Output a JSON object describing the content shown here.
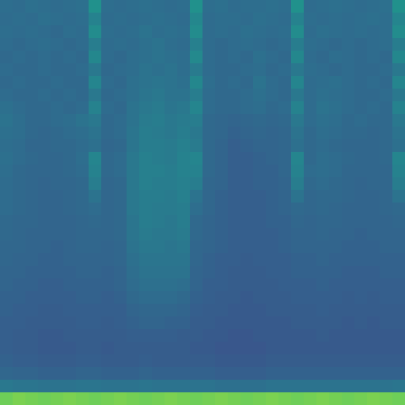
{
  "chart_data": {
    "type": "heatmap",
    "color": "Viridis",
    "zlim": [
      0,
      1
    ],
    "xlim": [
      -0.5,
      31.5
    ],
    "ylim": [
      31.5,
      -0.5
    ],
    "tick_labels": false,
    "z": [
      [
        0.36,
        0.35,
        0.37,
        0.36,
        0.35,
        0.36,
        0.37,
        0.5,
        0.36,
        0.35,
        0.36,
        0.37,
        0.36,
        0.35,
        0.36,
        0.5,
        0.36,
        0.37,
        0.35,
        0.36,
        0.36,
        0.37,
        0.36,
        0.5,
        0.35,
        0.36,
        0.37,
        0.36,
        0.35,
        0.36,
        0.37,
        0.5
      ],
      [
        0.35,
        0.36,
        0.35,
        0.37,
        0.36,
        0.35,
        0.36,
        0.44,
        0.35,
        0.36,
        0.35,
        0.36,
        0.37,
        0.36,
        0.35,
        0.46,
        0.35,
        0.36,
        0.36,
        0.35,
        0.37,
        0.36,
        0.35,
        0.44,
        0.36,
        0.35,
        0.36,
        0.35,
        0.36,
        0.37,
        0.36,
        0.45
      ],
      [
        0.36,
        0.35,
        0.36,
        0.35,
        0.34,
        0.36,
        0.35,
        0.48,
        0.36,
        0.35,
        0.36,
        0.38,
        0.36,
        0.37,
        0.36,
        0.48,
        0.35,
        0.36,
        0.35,
        0.37,
        0.36,
        0.35,
        0.36,
        0.48,
        0.35,
        0.37,
        0.36,
        0.35,
        0.36,
        0.35,
        0.36,
        0.48
      ],
      [
        0.35,
        0.34,
        0.35,
        0.36,
        0.35,
        0.34,
        0.35,
        0.42,
        0.35,
        0.36,
        0.35,
        0.37,
        0.38,
        0.36,
        0.35,
        0.43,
        0.35,
        0.34,
        0.35,
        0.36,
        0.35,
        0.34,
        0.35,
        0.42,
        0.36,
        0.35,
        0.34,
        0.35,
        0.34,
        0.35,
        0.36,
        0.42
      ],
      [
        0.34,
        0.35,
        0.34,
        0.35,
        0.34,
        0.35,
        0.34,
        0.46,
        0.35,
        0.34,
        0.36,
        0.37,
        0.38,
        0.37,
        0.36,
        0.47,
        0.35,
        0.34,
        0.35,
        0.34,
        0.37,
        0.35,
        0.34,
        0.46,
        0.35,
        0.34,
        0.36,
        0.35,
        0.34,
        0.35,
        0.34,
        0.46
      ],
      [
        0.35,
        0.34,
        0.34,
        0.35,
        0.34,
        0.34,
        0.35,
        0.4,
        0.34,
        0.35,
        0.36,
        0.38,
        0.37,
        0.38,
        0.36,
        0.41,
        0.35,
        0.34,
        0.34,
        0.35,
        0.36,
        0.34,
        0.35,
        0.4,
        0.36,
        0.35,
        0.34,
        0.35,
        0.34,
        0.34,
        0.35,
        0.4
      ],
      [
        0.34,
        0.35,
        0.34,
        0.34,
        0.35,
        0.34,
        0.34,
        0.45,
        0.35,
        0.34,
        0.37,
        0.38,
        0.39,
        0.38,
        0.37,
        0.46,
        0.36,
        0.34,
        0.35,
        0.34,
        0.38,
        0.35,
        0.34,
        0.45,
        0.35,
        0.36,
        0.37,
        0.35,
        0.34,
        0.35,
        0.34,
        0.45
      ],
      [
        0.35,
        0.34,
        0.34,
        0.35,
        0.34,
        0.35,
        0.34,
        0.4,
        0.34,
        0.35,
        0.37,
        0.39,
        0.4,
        0.38,
        0.38,
        0.42,
        0.35,
        0.34,
        0.34,
        0.35,
        0.37,
        0.35,
        0.34,
        0.4,
        0.35,
        0.37,
        0.36,
        0.35,
        0.34,
        0.34,
        0.35,
        0.4
      ],
      [
        0.37,
        0.35,
        0.34,
        0.34,
        0.35,
        0.34,
        0.35,
        0.44,
        0.35,
        0.34,
        0.38,
        0.4,
        0.41,
        0.39,
        0.4,
        0.45,
        0.35,
        0.34,
        0.34,
        0.35,
        0.36,
        0.34,
        0.35,
        0.44,
        0.35,
        0.38,
        0.37,
        0.35,
        0.34,
        0.35,
        0.34,
        0.44
      ],
      [
        0.38,
        0.36,
        0.34,
        0.34,
        0.35,
        0.36,
        0.38,
        0.4,
        0.34,
        0.35,
        0.38,
        0.41,
        0.42,
        0.4,
        0.41,
        0.42,
        0.34,
        0.33,
        0.32,
        0.33,
        0.34,
        0.33,
        0.34,
        0.4,
        0.35,
        0.37,
        0.36,
        0.34,
        0.35,
        0.34,
        0.34,
        0.4
      ],
      [
        0.37,
        0.36,
        0.34,
        0.33,
        0.34,
        0.35,
        0.36,
        0.38,
        0.34,
        0.35,
        0.39,
        0.42,
        0.41,
        0.4,
        0.42,
        0.4,
        0.34,
        0.33,
        0.31,
        0.32,
        0.33,
        0.32,
        0.33,
        0.38,
        0.34,
        0.36,
        0.35,
        0.34,
        0.34,
        0.33,
        0.34,
        0.38
      ],
      [
        0.36,
        0.35,
        0.33,
        0.33,
        0.34,
        0.34,
        0.35,
        0.37,
        0.33,
        0.34,
        0.39,
        0.42,
        0.42,
        0.41,
        0.43,
        0.41,
        0.34,
        0.32,
        0.3,
        0.31,
        0.32,
        0.32,
        0.33,
        0.37,
        0.34,
        0.35,
        0.34,
        0.33,
        0.33,
        0.33,
        0.34,
        0.37
      ],
      [
        0.37,
        0.35,
        0.34,
        0.33,
        0.33,
        0.34,
        0.36,
        0.45,
        0.34,
        0.35,
        0.4,
        0.43,
        0.42,
        0.41,
        0.44,
        0.45,
        0.34,
        0.32,
        0.3,
        0.3,
        0.31,
        0.32,
        0.33,
        0.45,
        0.34,
        0.36,
        0.35,
        0.34,
        0.33,
        0.33,
        0.34,
        0.45
      ],
      [
        0.36,
        0.34,
        0.33,
        0.33,
        0.33,
        0.34,
        0.35,
        0.44,
        0.34,
        0.35,
        0.4,
        0.43,
        0.43,
        0.42,
        0.44,
        0.44,
        0.34,
        0.32,
        0.3,
        0.3,
        0.31,
        0.31,
        0.33,
        0.44,
        0.35,
        0.36,
        0.35,
        0.33,
        0.33,
        0.33,
        0.33,
        0.44
      ],
      [
        0.35,
        0.34,
        0.33,
        0.32,
        0.33,
        0.33,
        0.34,
        0.42,
        0.33,
        0.34,
        0.4,
        0.43,
        0.42,
        0.42,
        0.43,
        0.42,
        0.33,
        0.32,
        0.3,
        0.3,
        0.31,
        0.31,
        0.32,
        0.42,
        0.34,
        0.35,
        0.34,
        0.33,
        0.32,
        0.33,
        0.33,
        0.42
      ],
      [
        0.35,
        0.34,
        0.33,
        0.32,
        0.32,
        0.33,
        0.34,
        0.38,
        0.33,
        0.34,
        0.4,
        0.42,
        0.42,
        0.41,
        0.43,
        0.38,
        0.33,
        0.31,
        0.3,
        0.3,
        0.3,
        0.31,
        0.32,
        0.38,
        0.33,
        0.34,
        0.34,
        0.33,
        0.32,
        0.32,
        0.33,
        0.38
      ],
      [
        0.35,
        0.34,
        0.33,
        0.32,
        0.32,
        0.33,
        0.34,
        0.35,
        0.33,
        0.34,
        0.4,
        0.42,
        0.41,
        0.41,
        0.42,
        0.36,
        0.33,
        0.31,
        0.3,
        0.3,
        0.3,
        0.31,
        0.32,
        0.34,
        0.33,
        0.34,
        0.33,
        0.32,
        0.32,
        0.32,
        0.33,
        0.34
      ],
      [
        0.34,
        0.33,
        0.33,
        0.32,
        0.32,
        0.32,
        0.33,
        0.34,
        0.33,
        0.34,
        0.39,
        0.42,
        0.41,
        0.4,
        0.42,
        0.34,
        0.32,
        0.31,
        0.3,
        0.3,
        0.3,
        0.31,
        0.31,
        0.33,
        0.32,
        0.33,
        0.33,
        0.32,
        0.32,
        0.32,
        0.32,
        0.33
      ],
      [
        0.34,
        0.33,
        0.32,
        0.32,
        0.32,
        0.32,
        0.33,
        0.33,
        0.33,
        0.34,
        0.39,
        0.41,
        0.4,
        0.4,
        0.41,
        0.34,
        0.32,
        0.31,
        0.3,
        0.3,
        0.3,
        0.3,
        0.31,
        0.32,
        0.32,
        0.33,
        0.32,
        0.32,
        0.31,
        0.32,
        0.32,
        0.32
      ],
      [
        0.33,
        0.33,
        0.32,
        0.32,
        0.31,
        0.32,
        0.33,
        0.33,
        0.32,
        0.33,
        0.38,
        0.4,
        0.4,
        0.39,
        0.4,
        0.33,
        0.32,
        0.31,
        0.3,
        0.3,
        0.3,
        0.3,
        0.31,
        0.32,
        0.32,
        0.32,
        0.32,
        0.31,
        0.31,
        0.31,
        0.32,
        0.32
      ],
      [
        0.33,
        0.32,
        0.32,
        0.31,
        0.31,
        0.32,
        0.32,
        0.32,
        0.32,
        0.33,
        0.37,
        0.39,
        0.39,
        0.39,
        0.39,
        0.33,
        0.31,
        0.3,
        0.3,
        0.29,
        0.3,
        0.3,
        0.3,
        0.31,
        0.31,
        0.32,
        0.31,
        0.31,
        0.31,
        0.31,
        0.31,
        0.31
      ],
      [
        0.32,
        0.32,
        0.31,
        0.31,
        0.31,
        0.31,
        0.32,
        0.32,
        0.31,
        0.32,
        0.36,
        0.38,
        0.38,
        0.38,
        0.38,
        0.32,
        0.31,
        0.3,
        0.29,
        0.29,
        0.29,
        0.3,
        0.3,
        0.31,
        0.31,
        0.31,
        0.31,
        0.3,
        0.3,
        0.3,
        0.31,
        0.31
      ],
      [
        0.32,
        0.31,
        0.31,
        0.3,
        0.3,
        0.31,
        0.31,
        0.31,
        0.31,
        0.32,
        0.35,
        0.37,
        0.37,
        0.37,
        0.36,
        0.32,
        0.3,
        0.3,
        0.29,
        0.29,
        0.29,
        0.29,
        0.3,
        0.3,
        0.3,
        0.31,
        0.3,
        0.3,
        0.3,
        0.3,
        0.3,
        0.3
      ],
      [
        0.31,
        0.31,
        0.3,
        0.3,
        0.3,
        0.3,
        0.31,
        0.31,
        0.3,
        0.31,
        0.34,
        0.35,
        0.35,
        0.35,
        0.34,
        0.31,
        0.3,
        0.29,
        0.29,
        0.28,
        0.29,
        0.29,
        0.29,
        0.3,
        0.3,
        0.3,
        0.3,
        0.29,
        0.3,
        0.29,
        0.3,
        0.3
      ],
      [
        0.31,
        0.3,
        0.3,
        0.29,
        0.29,
        0.3,
        0.3,
        0.3,
        0.3,
        0.3,
        0.32,
        0.33,
        0.33,
        0.33,
        0.32,
        0.3,
        0.29,
        0.29,
        0.28,
        0.28,
        0.28,
        0.29,
        0.29,
        0.29,
        0.29,
        0.3,
        0.29,
        0.29,
        0.29,
        0.29,
        0.29,
        0.29
      ],
      [
        0.3,
        0.3,
        0.29,
        0.29,
        0.29,
        0.29,
        0.3,
        0.3,
        0.29,
        0.3,
        0.31,
        0.32,
        0.32,
        0.31,
        0.31,
        0.29,
        0.29,
        0.28,
        0.28,
        0.28,
        0.28,
        0.28,
        0.28,
        0.29,
        0.29,
        0.29,
        0.29,
        0.28,
        0.29,
        0.28,
        0.29,
        0.29
      ],
      [
        0.3,
        0.29,
        0.29,
        0.28,
        0.28,
        0.29,
        0.29,
        0.29,
        0.29,
        0.29,
        0.3,
        0.3,
        0.3,
        0.3,
        0.29,
        0.29,
        0.28,
        0.28,
        0.27,
        0.27,
        0.28,
        0.28,
        0.28,
        0.28,
        0.28,
        0.29,
        0.28,
        0.28,
        0.28,
        0.28,
        0.28,
        0.28
      ],
      [
        0.3,
        0.29,
        0.29,
        0.28,
        0.28,
        0.28,
        0.29,
        0.29,
        0.28,
        0.29,
        0.29,
        0.29,
        0.29,
        0.29,
        0.29,
        0.28,
        0.28,
        0.27,
        0.27,
        0.27,
        0.27,
        0.28,
        0.28,
        0.28,
        0.28,
        0.28,
        0.28,
        0.28,
        0.28,
        0.28,
        0.28,
        0.28
      ],
      [
        0.31,
        0.3,
        0.3,
        0.29,
        0.29,
        0.29,
        0.3,
        0.3,
        0.29,
        0.29,
        0.29,
        0.3,
        0.29,
        0.29,
        0.29,
        0.29,
        0.29,
        0.28,
        0.28,
        0.28,
        0.28,
        0.29,
        0.29,
        0.29,
        0.29,
        0.29,
        0.29,
        0.29,
        0.29,
        0.29,
        0.29,
        0.29
      ],
      [
        0.33,
        0.32,
        0.32,
        0.31,
        0.31,
        0.31,
        0.32,
        0.32,
        0.31,
        0.31,
        0.31,
        0.32,
        0.31,
        0.31,
        0.31,
        0.31,
        0.31,
        0.3,
        0.3,
        0.3,
        0.3,
        0.31,
        0.31,
        0.31,
        0.31,
        0.31,
        0.31,
        0.31,
        0.31,
        0.31,
        0.31,
        0.31
      ],
      [
        0.4,
        0.39,
        0.39,
        0.38,
        0.38,
        0.38,
        0.39,
        0.39,
        0.38,
        0.38,
        0.38,
        0.39,
        0.38,
        0.38,
        0.38,
        0.38,
        0.38,
        0.37,
        0.37,
        0.37,
        0.37,
        0.38,
        0.38,
        0.38,
        0.38,
        0.38,
        0.38,
        0.38,
        0.38,
        0.38,
        0.38,
        0.39
      ],
      [
        0.78,
        0.8,
        0.79,
        0.78,
        0.79,
        0.8,
        0.79,
        0.78,
        0.79,
        0.8,
        0.79,
        0.78,
        0.79,
        0.8,
        0.79,
        0.78,
        0.79,
        0.8,
        0.79,
        0.78,
        0.79,
        0.8,
        0.79,
        0.78,
        0.79,
        0.8,
        0.79,
        0.78,
        0.79,
        0.8,
        0.79,
        0.78
      ]
    ]
  }
}
